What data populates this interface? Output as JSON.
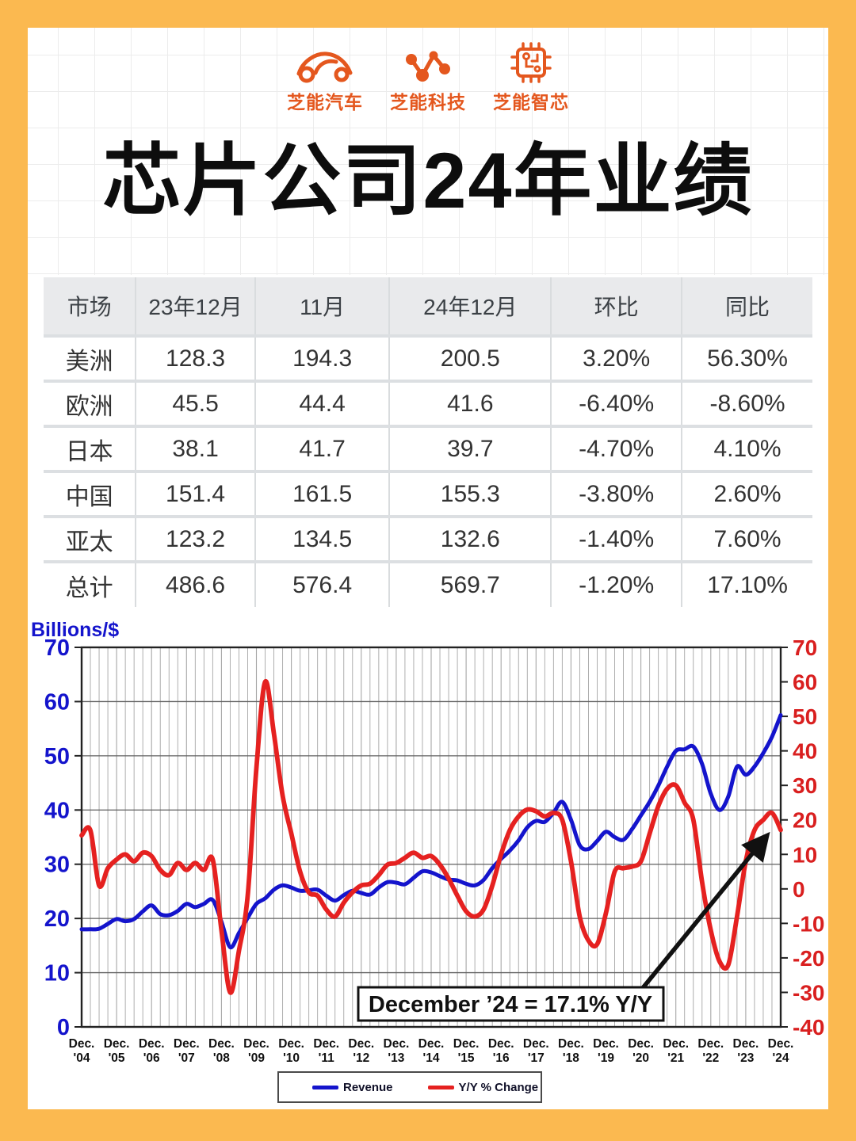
{
  "colors": {
    "page_bg": "#FBB950",
    "accent_orange": "#E4571E",
    "revenue_blue": "#1414CC",
    "yoy_red": "#E52120"
  },
  "header": {
    "logos": [
      {
        "label": "芝能汽车"
      },
      {
        "label": "芝能科技"
      },
      {
        "label": "芝能智芯"
      }
    ],
    "title": "芯片公司24年业绩"
  },
  "table": {
    "columns": [
      "市场",
      "23年12月",
      "11月",
      "24年12月",
      "环比",
      "同比"
    ],
    "col_widths_pct": [
      12,
      15.5,
      17.5,
      21,
      17,
      17
    ],
    "rows": [
      [
        "美洲",
        "128.3",
        "194.3",
        "200.5",
        "3.20%",
        "56.30%"
      ],
      [
        "欧洲",
        "45.5",
        "44.4",
        "41.6",
        "-6.40%",
        "-8.60%"
      ],
      [
        "日本",
        "38.1",
        "41.7",
        "39.7",
        "-4.70%",
        "4.10%"
      ],
      [
        "中国",
        "151.4",
        "161.5",
        "155.3",
        "-3.80%",
        "2.60%"
      ],
      [
        "亚太",
        "123.2",
        "134.5",
        "132.6",
        "-1.40%",
        "7.60%"
      ],
      [
        "总计",
        "486.6",
        "576.4",
        "569.7",
        "-1.20%",
        "17.10%"
      ]
    ]
  },
  "chart_data": {
    "type": "line",
    "ylabel_left": "Billions/$",
    "left_axis": {
      "min": 0,
      "max": 70,
      "step": 10,
      "color": "#1414CC"
    },
    "right_axis": {
      "min": -40,
      "max": 70,
      "step": 10,
      "color": "#D91F1F"
    },
    "x_tick_labels": [
      "Dec. '04",
      "Dec. '05",
      "Dec. '06",
      "Dec. '07",
      "Dec. '08",
      "Dec. '09",
      "Dec. '10",
      "Dec. '11",
      "Dec. '12",
      "Dec. '13",
      "Dec. '14",
      "Dec. '15",
      "Dec. '16",
      "Dec. '17",
      "Dec. '18",
      "Dec. '19",
      "Dec. '20",
      "Dec. '21",
      "Dec. '22",
      "Dec. '23",
      "Dec. '24"
    ],
    "points_per_year": 4,
    "grid": true,
    "legend_position": "bottom",
    "series": [
      {
        "name": "Revenue",
        "axis": "left",
        "color": "#1414CC",
        "values": [
          18.0,
          18.0,
          18.1,
          19.0,
          19.9,
          19.5,
          19.9,
          21.3,
          22.4,
          20.8,
          20.6,
          21.4,
          22.7,
          22.1,
          22.7,
          23.4,
          19.4,
          14.7,
          17.3,
          20.1,
          22.7,
          23.7,
          25.3,
          26.1,
          25.7,
          25.1,
          25.2,
          25.3,
          24.2,
          23.3,
          24.3,
          25.1,
          24.7,
          24.4,
          25.7,
          26.7,
          26.6,
          26.3,
          27.5,
          28.7,
          28.5,
          27.8,
          27.2,
          27.0,
          26.4,
          26.1,
          27.1,
          29.3,
          31.0,
          32.5,
          34.4,
          36.8,
          38.0,
          37.8,
          39.5,
          41.5,
          38.2,
          33.5,
          32.8,
          34.3,
          36.0,
          35.0,
          34.5,
          36.5,
          39.0,
          41.5,
          44.5,
          48.0,
          50.9,
          51.2,
          51.7,
          48.5,
          43.0,
          40.0,
          42.5,
          48.0,
          46.5,
          48.0,
          50.5,
          53.5,
          57.5
        ]
      },
      {
        "name": "Y/Y % Change",
        "axis": "right",
        "color": "#E52120",
        "values": [
          15.5,
          17.0,
          1.0,
          6.0,
          8.5,
          10.0,
          8.0,
          10.5,
          9.5,
          5.5,
          4.0,
          7.5,
          5.5,
          7.5,
          5.5,
          8.5,
          -12.0,
          -30.0,
          -18.0,
          -2.0,
          35.0,
          60.0,
          45.0,
          27.0,
          16.0,
          5.0,
          -1.0,
          -2.0,
          -6.0,
          -8.0,
          -4.0,
          -1.0,
          1.0,
          1.5,
          4.0,
          7.0,
          7.5,
          9.0,
          10.5,
          9.0,
          9.5,
          7.0,
          3.0,
          -2.0,
          -6.5,
          -8.0,
          -6.0,
          1.0,
          10.0,
          17.0,
          21.0,
          23.0,
          22.5,
          21.0,
          22.0,
          20.0,
          8.0,
          -8.0,
          -15.0,
          -16.0,
          -7.0,
          5.0,
          6.0,
          6.5,
          8.0,
          16.0,
          24.0,
          29.0,
          30.0,
          25.0,
          20.0,
          2.0,
          -12.0,
          -21.0,
          -22.0,
          -8.0,
          8.0,
          17.0,
          20.0,
          22.0,
          17.1
        ]
      }
    ],
    "annotation": {
      "text": "December ’24 = 17.1% Y/Y"
    }
  }
}
